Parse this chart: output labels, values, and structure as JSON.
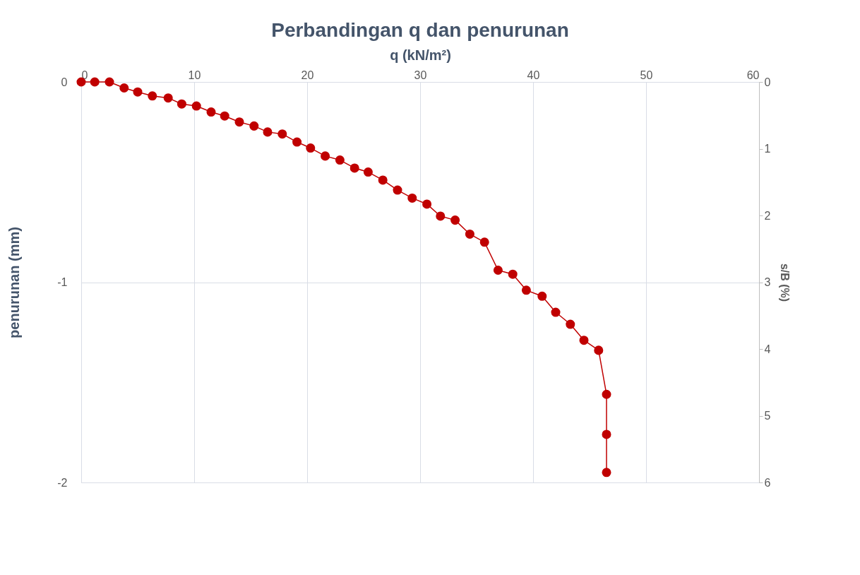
{
  "chart_data": {
    "type": "line",
    "title": "Perbandingan q dan penurunan",
    "xlabel": "q (kN/m²)",
    "ylabel": "penurunan (mm)",
    "y2label": "s/B (%)",
    "x": [
      0,
      1.2,
      2.5,
      3.8,
      5.0,
      6.3,
      7.7,
      8.9,
      10.2,
      11.5,
      12.7,
      14.0,
      15.3,
      16.5,
      17.8,
      19.1,
      20.3,
      21.6,
      22.9,
      24.2,
      25.4,
      26.7,
      28.0,
      29.3,
      30.6,
      31.8,
      33.1,
      34.4,
      35.7,
      36.9,
      38.2,
      39.4,
      40.8,
      42.0,
      43.3,
      44.5,
      45.8,
      46.5,
      46.5,
      46.5
    ],
    "series": [
      {
        "color": "#c00000",
        "values": [
          0,
          0,
          0,
          -0.03,
          -0.05,
          -0.07,
          -0.08,
          -0.11,
          -0.12,
          -0.15,
          -0.17,
          -0.2,
          -0.22,
          -0.25,
          -0.26,
          -0.3,
          -0.33,
          -0.37,
          -0.39,
          -0.43,
          -0.45,
          -0.49,
          -0.54,
          -0.58,
          -0.61,
          -0.67,
          -0.69,
          -0.76,
          -0.8,
          -0.94,
          -0.96,
          -1.04,
          -1.07,
          -1.15,
          -1.21,
          -1.29,
          -1.34,
          -1.56,
          -1.76,
          -1.95
        ]
      }
    ],
    "xlim": [
      0,
      60
    ],
    "xticks": [
      0,
      10,
      20,
      30,
      40,
      50,
      60
    ],
    "ylim": [
      -2,
      0
    ],
    "yticks": [
      -2,
      -1,
      0
    ],
    "y2lim": [
      6,
      0
    ],
    "y2ticks": [
      0,
      1,
      2,
      3,
      4,
      5,
      6
    ],
    "grid": true,
    "marker": "circle",
    "line_style": "solid"
  }
}
